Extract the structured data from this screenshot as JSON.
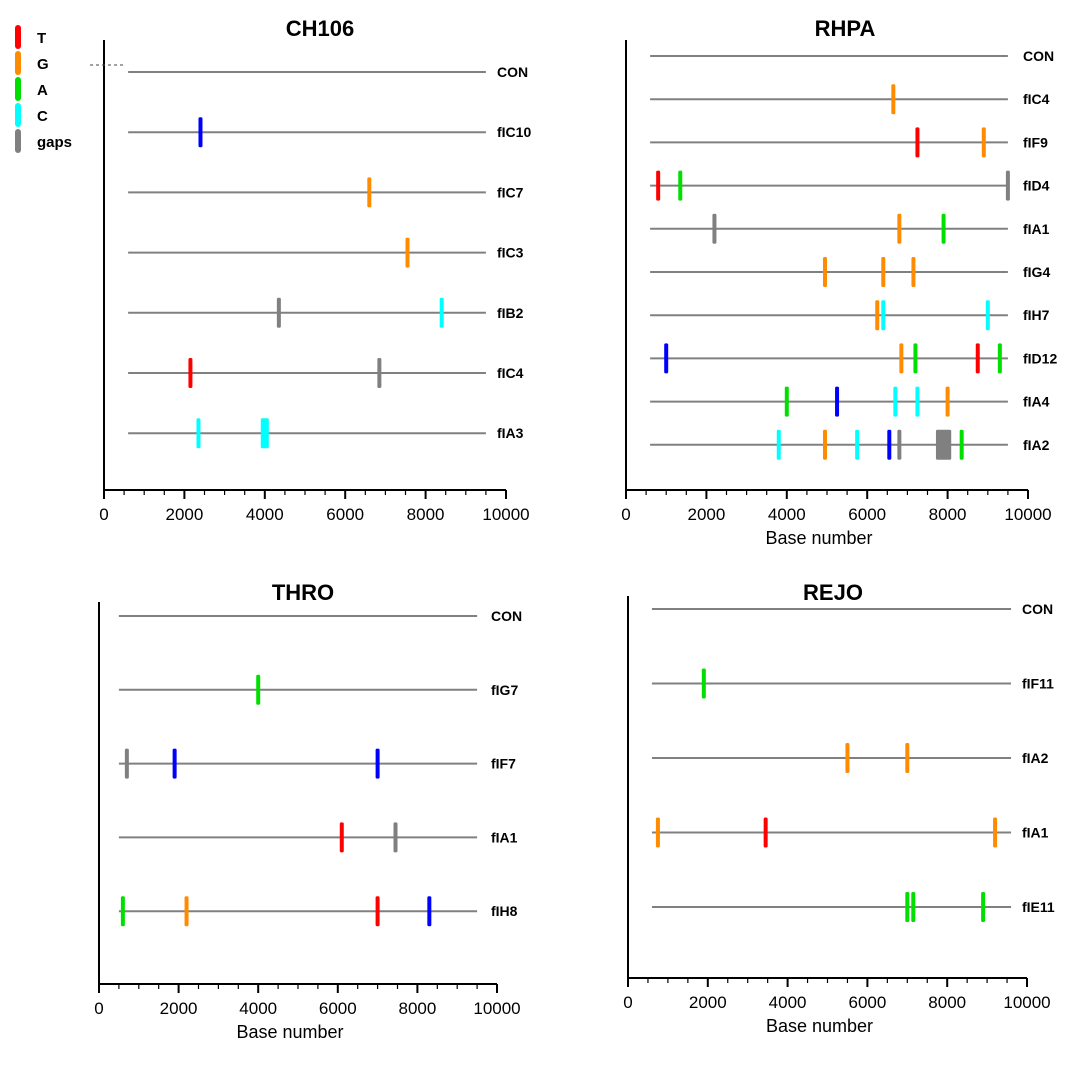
{
  "legend": {
    "items": [
      {
        "label": "T",
        "color": "#ff0000"
      },
      {
        "label": "G",
        "color": "#ff8c00"
      },
      {
        "label": "A",
        "color": "#00e000"
      },
      {
        "label": "C",
        "color": "#00ffff"
      },
      {
        "label": "gaps",
        "color": "#808080"
      }
    ]
  },
  "chart_data": [
    {
      "type": "sequence-variation",
      "title": "CH106",
      "xlabel": "",
      "xlim": [
        0,
        10000
      ],
      "xticks": [
        0,
        2000,
        4000,
        6000,
        8000,
        10000
      ],
      "sequence_range": [
        600,
        9500
      ],
      "rows": [
        {
          "name": "CON",
          "marks": []
        },
        {
          "name": "fIC10",
          "marks": [
            {
              "pos": 2400,
              "color": "#0000ff"
            }
          ]
        },
        {
          "name": "fIC7",
          "marks": [
            {
              "pos": 6600,
              "color": "#ff8c00"
            }
          ]
        },
        {
          "name": "fIC3",
          "marks": [
            {
              "pos": 7550,
              "color": "#ff8c00"
            }
          ]
        },
        {
          "name": "fIB2",
          "marks": [
            {
              "pos": 4350,
              "color": "#808080"
            },
            {
              "pos": 8400,
              "color": "#00ffff"
            }
          ]
        },
        {
          "name": "fIC4",
          "marks": [
            {
              "pos": 2150,
              "color": "#ff0000"
            },
            {
              "pos": 6850,
              "color": "#808080"
            }
          ]
        },
        {
          "name": "fIA3",
          "marks": [
            {
              "pos": 2350,
              "color": "#00ffff"
            },
            {
              "pos": 4000,
              "color": "#00ffff",
              "width": 200
            }
          ]
        }
      ]
    },
    {
      "type": "sequence-variation",
      "title": "RHPA",
      "xlabel": "Base number",
      "xlim": [
        0,
        10000
      ],
      "xticks": [
        0,
        2000,
        4000,
        6000,
        8000,
        10000
      ],
      "sequence_range": [
        600,
        9500
      ],
      "rows": [
        {
          "name": "CON",
          "marks": []
        },
        {
          "name": "fIC4",
          "marks": [
            {
              "pos": 6650,
              "color": "#ff8c00"
            }
          ]
        },
        {
          "name": "fIF9",
          "marks": [
            {
              "pos": 7250,
              "color": "#ff0000"
            },
            {
              "pos": 8900,
              "color": "#ff8c00"
            }
          ]
        },
        {
          "name": "fID4",
          "marks": [
            {
              "pos": 800,
              "color": "#ff0000"
            },
            {
              "pos": 1350,
              "color": "#00e000"
            },
            {
              "pos": 9500,
              "color": "#808080"
            }
          ]
        },
        {
          "name": "fIA1",
          "marks": [
            {
              "pos": 2200,
              "color": "#808080"
            },
            {
              "pos": 6800,
              "color": "#ff8c00"
            },
            {
              "pos": 7900,
              "color": "#00e000"
            }
          ]
        },
        {
          "name": "fIG4",
          "marks": [
            {
              "pos": 4950,
              "color": "#ff8c00"
            },
            {
              "pos": 6400,
              "color": "#ff8c00"
            },
            {
              "pos": 7150,
              "color": "#ff8c00"
            }
          ]
        },
        {
          "name": "fIH7",
          "marks": [
            {
              "pos": 6250,
              "color": "#ff8c00"
            },
            {
              "pos": 6400,
              "color": "#00ffff"
            },
            {
              "pos": 9000,
              "color": "#00ffff"
            }
          ]
        },
        {
          "name": "fID12",
          "marks": [
            {
              "pos": 1000,
              "color": "#0000ff"
            },
            {
              "pos": 6850,
              "color": "#ff8c00"
            },
            {
              "pos": 7200,
              "color": "#00e000"
            },
            {
              "pos": 8750,
              "color": "#ff0000"
            },
            {
              "pos": 9300,
              "color": "#00e000"
            }
          ]
        },
        {
          "name": "fIA4",
          "marks": [
            {
              "pos": 4000,
              "color": "#00e000"
            },
            {
              "pos": 5250,
              "color": "#0000ff"
            },
            {
              "pos": 6700,
              "color": "#00ffff"
            },
            {
              "pos": 7250,
              "color": "#00ffff"
            },
            {
              "pos": 8000,
              "color": "#ff8c00"
            }
          ]
        },
        {
          "name": "fIA2",
          "marks": [
            {
              "pos": 3800,
              "color": "#00ffff"
            },
            {
              "pos": 4950,
              "color": "#ff8c00"
            },
            {
              "pos": 5750,
              "color": "#00ffff"
            },
            {
              "pos": 6550,
              "color": "#0000ff"
            },
            {
              "pos": 6800,
              "color": "#808080"
            },
            {
              "pos": 7900,
              "color": "#808080",
              "width": 380
            },
            {
              "pos": 8350,
              "color": "#00e000"
            }
          ]
        }
      ]
    },
    {
      "type": "sequence-variation",
      "title": "THRO",
      "xlabel": "Base number",
      "xlim": [
        0,
        10000
      ],
      "xticks": [
        0,
        2000,
        4000,
        6000,
        8000,
        10000
      ],
      "sequence_range": [
        500,
        9500
      ],
      "rows": [
        {
          "name": "CON",
          "marks": []
        },
        {
          "name": "fIG7",
          "marks": [
            {
              "pos": 4000,
              "color": "#00e000"
            }
          ]
        },
        {
          "name": "fIF7",
          "marks": [
            {
              "pos": 700,
              "color": "#808080"
            },
            {
              "pos": 1900,
              "color": "#0000ff"
            },
            {
              "pos": 7000,
              "color": "#0000ff"
            }
          ]
        },
        {
          "name": "fIA1",
          "marks": [
            {
              "pos": 6100,
              "color": "#ff0000"
            },
            {
              "pos": 7450,
              "color": "#808080"
            }
          ]
        },
        {
          "name": "fIH8",
          "marks": [
            {
              "pos": 600,
              "color": "#00e000"
            },
            {
              "pos": 2200,
              "color": "#ff8c00"
            },
            {
              "pos": 7000,
              "color": "#ff0000"
            },
            {
              "pos": 8300,
              "color": "#0000ff"
            }
          ]
        }
      ]
    },
    {
      "type": "sequence-variation",
      "title": "REJO",
      "xlabel": "Base number",
      "xlim": [
        0,
        10000
      ],
      "xticks": [
        0,
        2000,
        4000,
        6000,
        8000,
        10000
      ],
      "sequence_range": [
        600,
        9600
      ],
      "rows": [
        {
          "name": "CON",
          "marks": []
        },
        {
          "name": "fIF11",
          "marks": [
            {
              "pos": 1900,
              "color": "#00e000"
            }
          ]
        },
        {
          "name": "fIA2",
          "marks": [
            {
              "pos": 5500,
              "color": "#ff8c00"
            },
            {
              "pos": 7000,
              "color": "#ff8c00"
            }
          ]
        },
        {
          "name": "fIA1",
          "marks": [
            {
              "pos": 750,
              "color": "#ff8c00"
            },
            {
              "pos": 3450,
              "color": "#ff0000"
            },
            {
              "pos": 9200,
              "color": "#ff8c00"
            }
          ]
        },
        {
          "name": "fIE11",
          "marks": [
            {
              "pos": 7000,
              "color": "#00e000"
            },
            {
              "pos": 7150,
              "color": "#00e000"
            },
            {
              "pos": 8900,
              "color": "#00e000"
            }
          ]
        }
      ]
    }
  ]
}
